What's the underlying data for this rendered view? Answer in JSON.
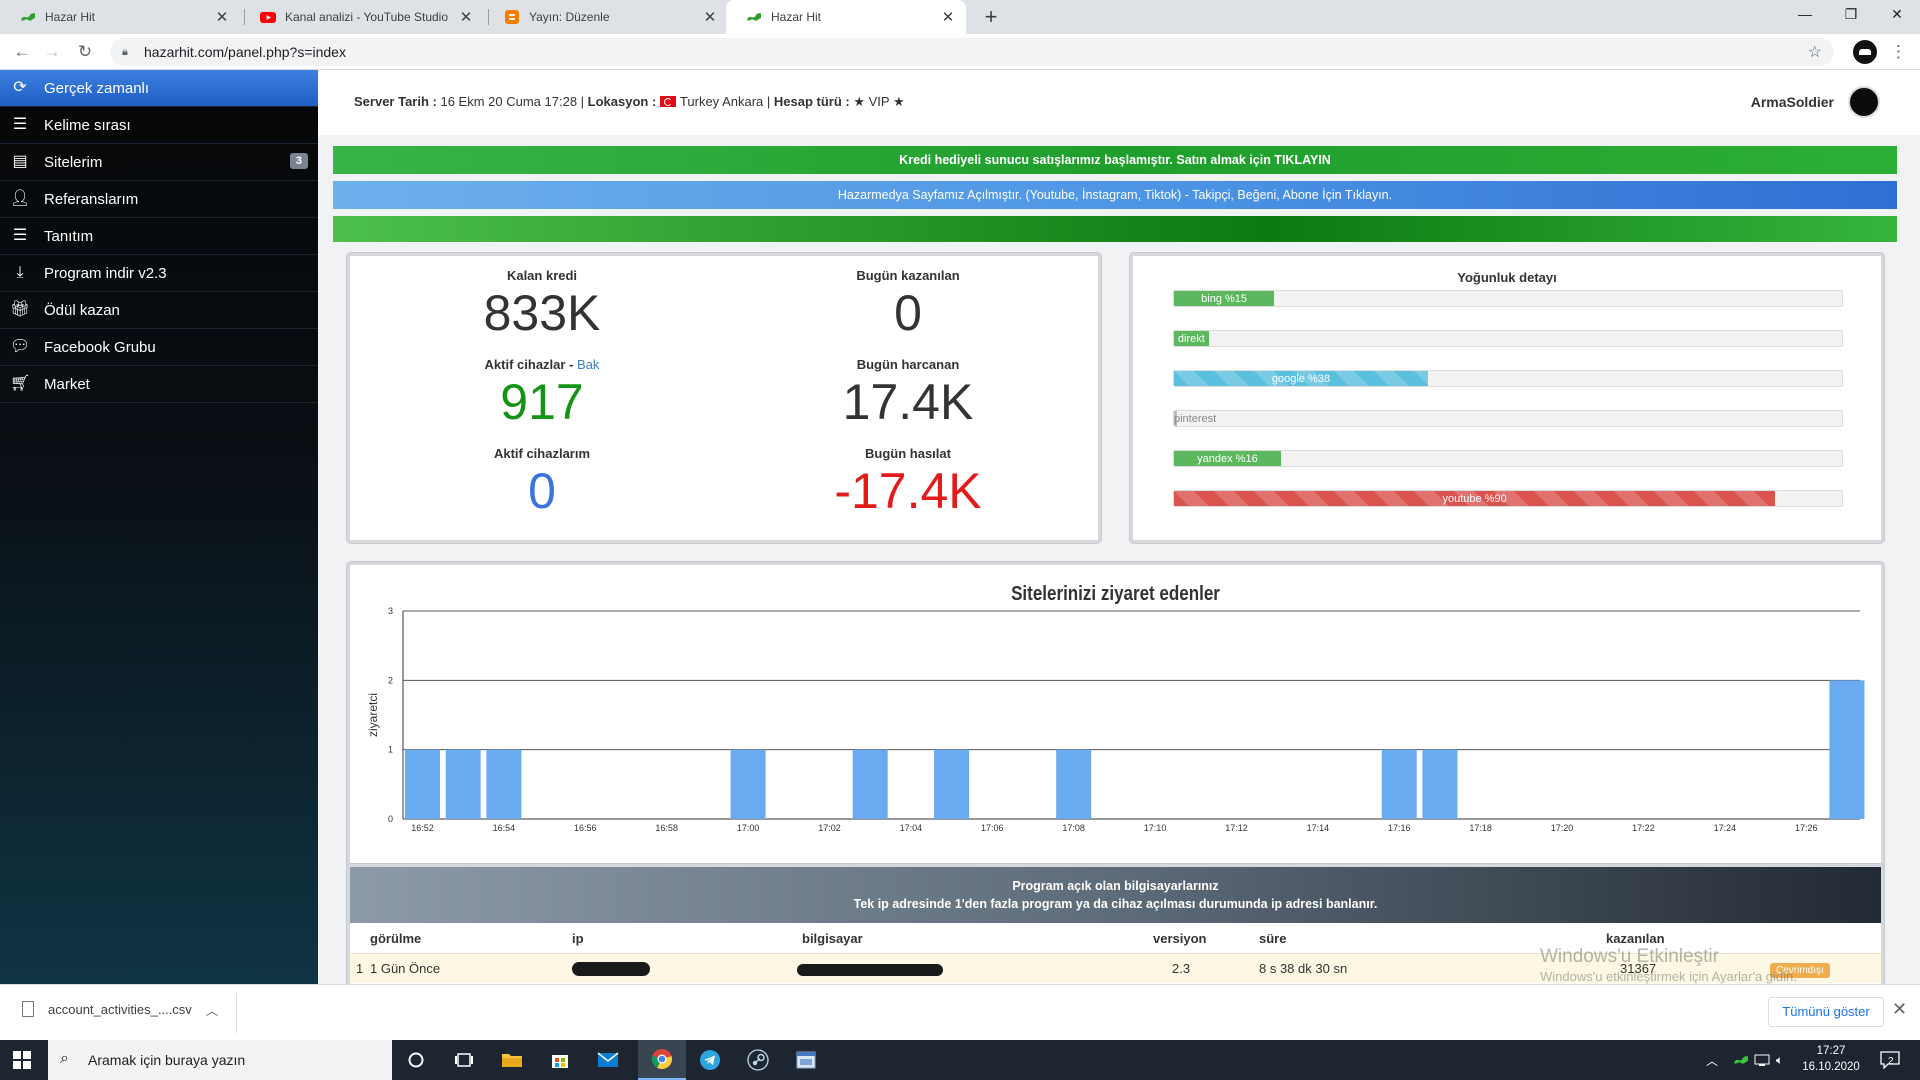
{
  "browser": {
    "tabs": [
      {
        "title": "Hazar Hit",
        "icon": "hazarhit-logo-icon",
        "active": false
      },
      {
        "title": "Kanal analizi - YouTube Studio",
        "icon": "youtube-icon",
        "active": false
      },
      {
        "title": "Yayın: Düzenle",
        "icon": "blogger-icon",
        "active": false
      },
      {
        "title": "Hazar Hit",
        "icon": "hazarhit-logo-icon",
        "active": true
      }
    ],
    "url": "hazarhit.com/panel.php?s=index"
  },
  "sidebar": {
    "items": [
      {
        "label": "Gerçek zamanlı",
        "icon": "refresh-icon",
        "active": true
      },
      {
        "label": "Kelime sırası",
        "icon": "list-icon"
      },
      {
        "label": "Sitelerim",
        "icon": "document-list-icon",
        "badge": "3"
      },
      {
        "label": "Referanslarım",
        "icon": "user-icon"
      },
      {
        "label": "Tanıtım",
        "icon": "server-icon"
      },
      {
        "label": "Program indir v2.3",
        "icon": "download-icon"
      },
      {
        "label": "Ödül kazan",
        "icon": "gift-icon"
      },
      {
        "label": "Facebook Grubu",
        "icon": "comment-icon"
      },
      {
        "label": "Market",
        "icon": "cart-icon"
      }
    ]
  },
  "header": {
    "server_date_label": "Server Tarih :",
    "server_date": "16 Ekm 20 Cuma 17:28",
    "location_label": "Lokasyon :",
    "location": "Turkey Ankara",
    "account_label": "Hesap türü :",
    "account_type": "★ VIP ★",
    "username": "ArmaSoldier"
  },
  "banners": {
    "green": "Kredi hediyeli sunucu satışlarımız başlamıştır. Satın almak için TIKLAYIN",
    "blue": "Hazarmedya Sayfamız Açılmıştır. (Youtube, İnstagram, Tiktok) - Takipçi, Beğeni, Abone İçin Tıklayın.",
    "green2": ""
  },
  "stats": {
    "remaining_credit": {
      "label": "Kalan kredi",
      "value": "833K"
    },
    "earned_today": {
      "label": "Bugün kazanılan",
      "value": "0"
    },
    "active_devices": {
      "label": "Aktif cihazlar",
      "link": "Bak",
      "value": "917"
    },
    "spent_today": {
      "label": "Bugün harcanan",
      "value": "17.4K"
    },
    "my_active_devices": {
      "label": "Aktif cihazlarım",
      "value": "0"
    },
    "today_income": {
      "label": "Bugün hasılat",
      "value": "-17.4K"
    }
  },
  "density": {
    "title": "Yoğunluk detayı",
    "bars": [
      {
        "label": "bing %15",
        "percent": 15,
        "style": "green"
      },
      {
        "label": "direkt",
        "percent": 0,
        "style": "green"
      },
      {
        "label": "google %38",
        "percent": 38,
        "style": "info"
      },
      {
        "label": "pinterest",
        "percent": 0,
        "style": "grey"
      },
      {
        "label": "yandex %16",
        "percent": 16,
        "style": "green"
      },
      {
        "label": "youtube %90",
        "percent": 90,
        "style": "red"
      }
    ]
  },
  "chart_data": {
    "type": "bar",
    "title": "Sitelerinizi ziyaret edenler",
    "ylabel": "ziyaretci",
    "ylim": [
      0,
      3
    ],
    "yticks": [
      "0",
      "1",
      "2",
      "3"
    ],
    "x_tick_labels": [
      "16:52",
      "16:54",
      "16:56",
      "16:58",
      "17:00",
      "17:02",
      "17:04",
      "17:06",
      "17:08",
      "17:10",
      "17:12",
      "17:14",
      "17:16",
      "17:18",
      "17:20",
      "17:22",
      "17:24",
      "17:26"
    ],
    "categories": [
      "16:52",
      "16:53",
      "16:54",
      "16:55",
      "16:56",
      "16:57",
      "16:58",
      "16:59",
      "17:00",
      "17:01",
      "17:02",
      "17:03",
      "17:04",
      "17:05",
      "17:06",
      "17:07",
      "17:08",
      "17:09",
      "17:10",
      "17:11",
      "17:12",
      "17:13",
      "17:14",
      "17:15",
      "17:16",
      "17:17",
      "17:18",
      "17:19",
      "17:20",
      "17:21",
      "17:22",
      "17:23",
      "17:24",
      "17:25",
      "17:26",
      "17:27"
    ],
    "values": [
      1,
      1,
      1,
      0,
      0,
      0,
      0,
      0,
      1,
      0,
      0,
      1,
      0,
      1,
      0,
      0,
      1,
      0,
      0,
      0,
      0,
      0,
      0,
      0,
      1,
      1,
      0,
      0,
      0,
      0,
      0,
      0,
      0,
      0,
      0,
      2
    ],
    "bar_color": "#6aaaf0",
    "grid": true
  },
  "computers": {
    "title": "Program açık olan bilgisayarlarınız",
    "subtitle": "Tek ip adresinde 1'den fazla program ya da cihaz açılması durumunda ip adresi banlanır.",
    "columns": [
      "görülme",
      "ip",
      "bilgisayar",
      "versiyon",
      "süre",
      "kazanılan"
    ],
    "rows": [
      {
        "index": "1",
        "seen": "1 Gün Önce",
        "version": "2.3",
        "duration": "8 s 38 dk 30 sn",
        "earned": "31367",
        "status": "Çevrimdışı"
      }
    ]
  },
  "watermark": {
    "title": "Windows'u Etkinleştir",
    "text": "Windows'u etkinleştirmek için Ayarlar'a gidin."
  },
  "downloads": {
    "file": "account_activities_....csv",
    "show_all": "Tümünü göster"
  },
  "taskbar": {
    "search_placeholder": "Aramak için buraya yazın",
    "time": "17:27",
    "date": "16.10.2020",
    "notifications": "2"
  }
}
